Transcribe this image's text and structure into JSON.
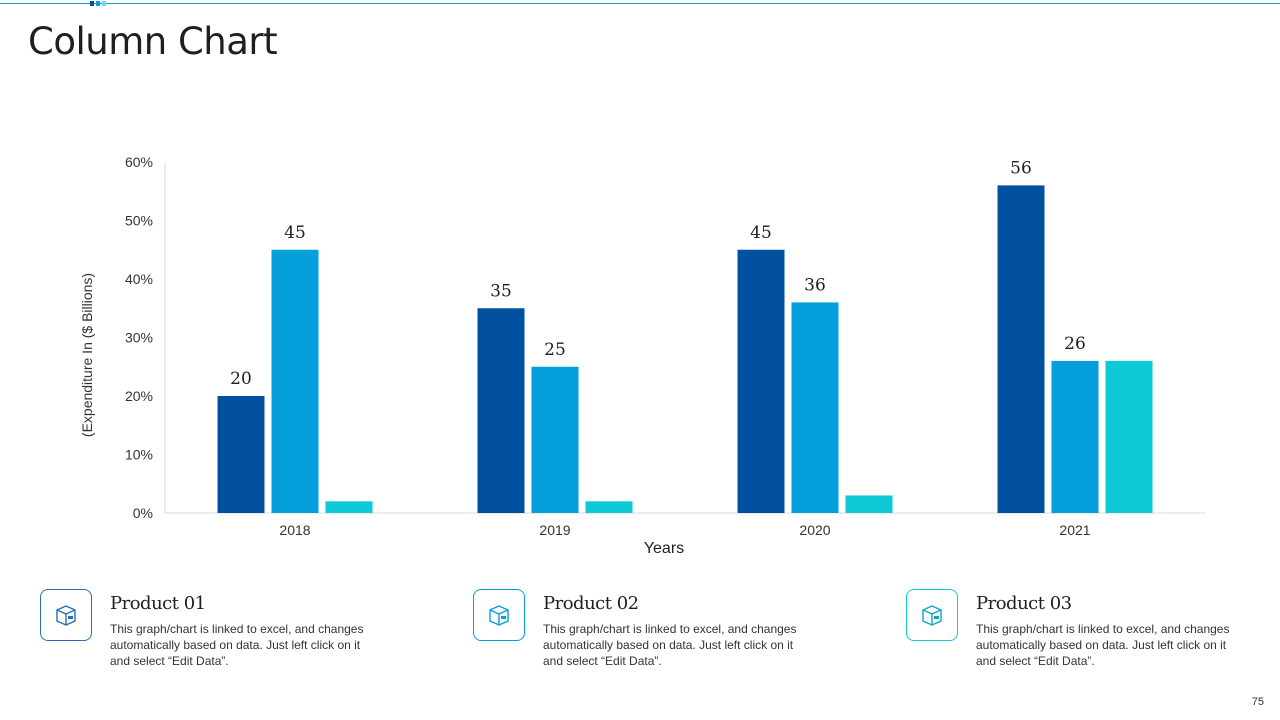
{
  "slide": {
    "title": "Column Chart",
    "page_number": "75"
  },
  "colors": {
    "series1": "#0050a0",
    "series2": "#059fdb",
    "series3": "#0ecad6",
    "accent": "#0e9fc9"
  },
  "chart_data": {
    "type": "bar",
    "categories": [
      "2018",
      "2019",
      "2020",
      "2021"
    ],
    "series": [
      {
        "values": [
          20,
          35,
          45,
          56
        ],
        "labels": [
          "20",
          "35",
          "45",
          "56"
        ]
      },
      {
        "values": [
          45,
          25,
          36,
          26
        ],
        "labels": [
          "45",
          "25",
          "36",
          "26"
        ]
      },
      {
        "values": [
          2,
          2,
          3,
          26
        ],
        "labels": [
          "",
          "",
          "",
          ""
        ]
      }
    ],
    "title": "",
    "xlabel": "Years",
    "ylabel": "(Expenditure In ($ Billions)",
    "ylim": [
      0,
      60
    ],
    "yticks": [
      "0%",
      "10%",
      "20%",
      "30%",
      "40%",
      "50%",
      "60%"
    ],
    "grid": false
  },
  "products": [
    {
      "title": "Product 01",
      "description": "This graph/chart is linked to excel, and changes automatically based on data. Just left click on it and select “Edit Data”.",
      "icon": "box-icon"
    },
    {
      "title": "Product 02",
      "description": "This graph/chart is linked to excel, and changes automatically based on data. Just left click on it and select “Edit Data”.",
      "icon": "box-icon"
    },
    {
      "title": "Product 03",
      "description": "This graph/chart is linked to excel, and changes automatically based on data. Just left click on it and select “Edit Data”.",
      "icon": "box-icon"
    }
  ]
}
